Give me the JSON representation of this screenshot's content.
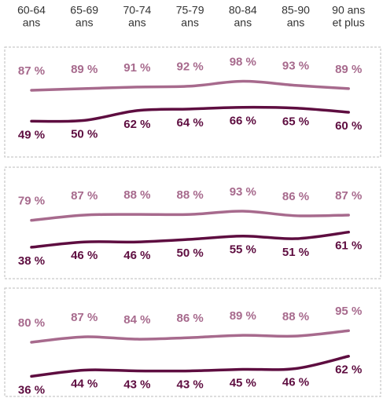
{
  "chart_data": [
    {
      "type": "line",
      "categories": [
        [
          "60-64",
          "ans"
        ],
        [
          "65-69",
          "ans"
        ],
        [
          "70-74",
          "ans"
        ],
        [
          "75-79",
          "ans"
        ],
        [
          "80-84",
          "ans"
        ],
        [
          "85-90",
          "ans"
        ],
        [
          "90 ans",
          "et plus"
        ]
      ],
      "ylim": [
        5,
        140
      ],
      "series": [
        {
          "color": "#a76a8d",
          "values": [
            87,
            89,
            91,
            92,
            98,
            93,
            89
          ],
          "value_labels": [
            "87 %",
            "89 %",
            "91 %",
            "92 %",
            "98 %",
            "93 %",
            "89 %"
          ]
        },
        {
          "color": "#5e0d40",
          "values": [
            49,
            50,
            62,
            64,
            66,
            65,
            60
          ],
          "value_labels": [
            "49 %",
            "50 %",
            "62 %",
            "64 %",
            "66 %",
            "65 %",
            "60 %"
          ]
        }
      ]
    },
    {
      "type": "line",
      "ylim": [
        -10,
        160
      ],
      "series": [
        {
          "color": "#a76a8d",
          "values": [
            79,
            87,
            88,
            88,
            93,
            86,
            87
          ],
          "value_labels": [
            "79 %",
            "87 %",
            "88 %",
            "88 %",
            "93 %",
            "86 %",
            "87 %"
          ]
        },
        {
          "color": "#5e0d40",
          "values": [
            38,
            46,
            46,
            50,
            55,
            51,
            61
          ],
          "value_labels": [
            "38 %",
            "46 %",
            "46 %",
            "50 %",
            "55 %",
            "51 %",
            "61 %"
          ]
        }
      ]
    },
    {
      "type": "line",
      "ylim": [
        10,
        150
      ],
      "series": [
        {
          "color": "#a76a8d",
          "values": [
            80,
            87,
            84,
            86,
            89,
            88,
            95
          ],
          "value_labels": [
            "80 %",
            "87 %",
            "84 %",
            "86 %",
            "89 %",
            "88 %",
            "95 %"
          ]
        },
        {
          "color": "#5e0d40",
          "values": [
            36,
            44,
            43,
            43,
            45,
            46,
            62
          ],
          "value_labels": [
            "36 %",
            "44 %",
            "43 %",
            "43 %",
            "45 %",
            "46 %",
            "62 %"
          ]
        }
      ]
    }
  ]
}
